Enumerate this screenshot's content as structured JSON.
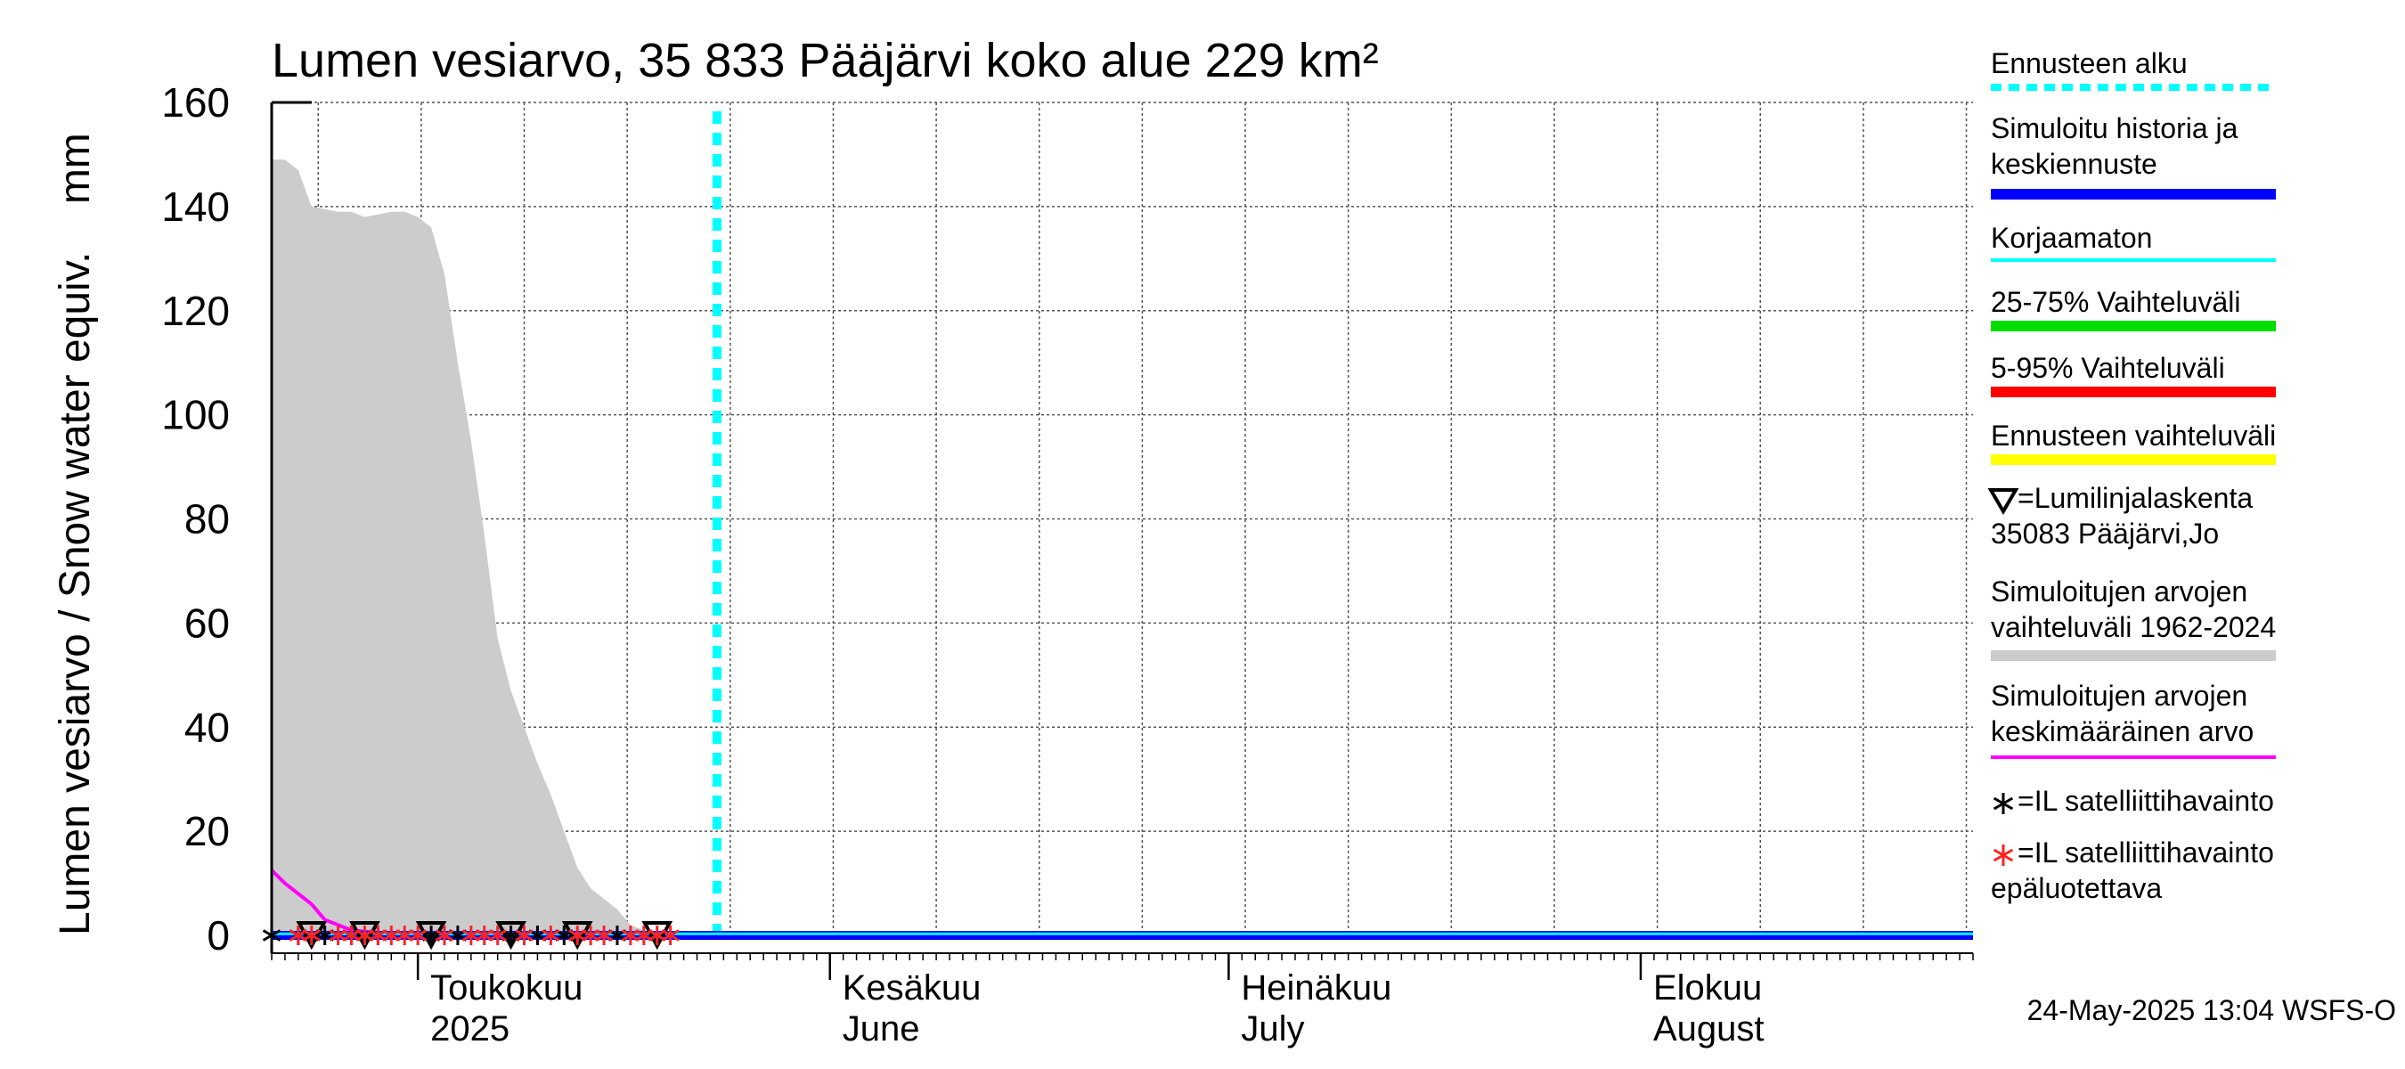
{
  "chart_data": {
    "type": "area",
    "title": "Lumen vesiarvo, 35 833 Pääjärvi koko alue 229 km²",
    "ylabel": "Lumen vesiarvo / Snow water equiv.    mm",
    "ylim": [
      0,
      160
    ],
    "yticks": [
      0,
      20,
      40,
      60,
      80,
      100,
      120,
      140,
      160
    ],
    "x_range_days": [
      0,
      128
    ],
    "months": [
      {
        "day": 11,
        "line1": "Toukokuu",
        "line2": "2025"
      },
      {
        "day": 42,
        "line1": "Kesäkuu",
        "line2": "June"
      },
      {
        "day": 72,
        "line1": "Heinäkuu",
        "line2": "July"
      },
      {
        "day": 103,
        "line1": "Elokuu",
        "line2": "August"
      }
    ],
    "forecast_start_day": 33.5,
    "historical_range": {
      "label": "Simuloitujen arvojen vaihteluväli 1962-2024",
      "upper": [
        [
          0,
          149
        ],
        [
          1,
          149
        ],
        [
          2,
          147
        ],
        [
          3,
          140
        ],
        [
          5,
          139
        ],
        [
          6,
          139
        ],
        [
          7,
          138
        ],
        [
          9,
          139
        ],
        [
          10,
          139
        ],
        [
          11,
          138
        ],
        [
          12,
          136
        ],
        [
          13,
          127
        ],
        [
          14,
          110
        ],
        [
          15,
          95
        ],
        [
          16,
          77
        ],
        [
          17,
          57
        ],
        [
          18,
          47
        ],
        [
          19,
          40
        ],
        [
          20,
          33
        ],
        [
          21,
          27
        ],
        [
          22,
          20
        ],
        [
          23,
          13
        ],
        [
          24,
          9
        ],
        [
          25,
          7
        ],
        [
          26,
          5
        ],
        [
          27,
          2
        ],
        [
          28,
          1
        ],
        [
          29,
          0
        ]
      ],
      "lower": [
        [
          0,
          0
        ],
        [
          29,
          0
        ]
      ]
    },
    "series": [
      {
        "name": "Simuloitujen arvojen keskimääräinen arvo",
        "color": "#ff00ff",
        "points": [
          [
            0,
            12.5
          ],
          [
            1,
            10
          ],
          [
            2,
            8
          ],
          [
            3,
            6
          ],
          [
            4,
            3
          ],
          [
            5,
            2
          ],
          [
            6,
            1
          ],
          [
            8,
            0.5
          ],
          [
            10,
            0
          ]
        ]
      },
      {
        "name": "Simuloitu historia ja keskiennuste",
        "color": "#0000ff",
        "points": [
          [
            0,
            0
          ],
          [
            128,
            0
          ]
        ]
      },
      {
        "name": "Korjaamaton",
        "color": "#00ffff",
        "points": [
          [
            0,
            0.3
          ],
          [
            128,
            0.3
          ]
        ]
      }
    ],
    "snow_course_days": [
      3,
      7,
      12,
      18,
      23,
      29
    ],
    "satellite_obs_days": [
      0,
      2,
      4,
      6,
      8,
      12,
      14,
      18,
      20,
      22,
      26
    ],
    "satellite_unreliable_days": [
      2,
      3,
      5,
      6,
      7,
      8,
      9,
      10,
      11,
      13,
      15,
      16,
      17,
      19,
      21,
      23,
      24,
      25,
      27,
      28,
      29,
      30
    ],
    "legend": [
      {
        "label": "Ennusteen alku",
        "color": "#00ffff",
        "style": "dotted"
      },
      {
        "label": "Simuloitu historia ja",
        "label2": "keskiennuste",
        "color": "#0000ff",
        "style": "thick"
      },
      {
        "label": "Korjaamaton",
        "color": "#00ffff",
        "style": "thin"
      },
      {
        "label": "25-75% Vaihteluväli",
        "color": "#00dd00",
        "style": "thick"
      },
      {
        "label": "5-95% Vaihteluväli",
        "color": "#ff0000",
        "style": "thick"
      },
      {
        "label": "Ennusteen vaihteluväli",
        "color": "#ffff00",
        "style": "thick"
      },
      {
        "label": "=Lumilinjalaskenta",
        "label2": "35083 Pääjärvi,Jo",
        "marker": "triangle"
      },
      {
        "label": "Simuloitujen arvojen",
        "label2": "vaihteluväli 1962-2024",
        "color": "#cccccc",
        "style": "thick"
      },
      {
        "label": "Simuloitujen arvojen",
        "label2": "keskimääräinen arvo",
        "color": "#ff00ff",
        "style": "thin"
      },
      {
        "label": "=IL satelliittihavainto",
        "marker": "star-black"
      },
      {
        "label": "=IL satelliittihavainto",
        "label2": "epäluotettava",
        "marker": "star-red"
      }
    ]
  },
  "footer": {
    "timestamp": "24-May-2025 13:04 WSFS-O"
  }
}
